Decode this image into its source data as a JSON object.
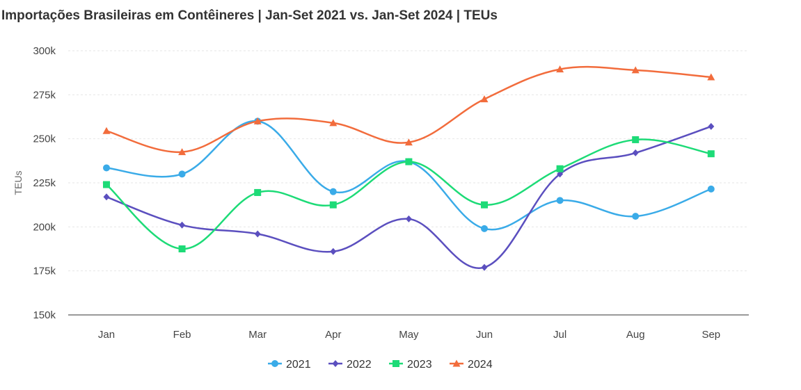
{
  "chart_data": {
    "type": "line",
    "title": "Importações Brasileiras em Contêineres | Jan-Set 2021 vs. Jan-Set 2024 | TEUs",
    "xlabel": "",
    "ylabel": "TEUs",
    "categories": [
      "Jan",
      "Feb",
      "Mar",
      "Apr",
      "May",
      "Jun",
      "Jul",
      "Aug",
      "Sep"
    ],
    "ylim": [
      150000,
      300000
    ],
    "yticks": [
      150000,
      175000,
      200000,
      225000,
      250000,
      275000,
      300000
    ],
    "ytick_labels": [
      "150k",
      "175k",
      "200k",
      "225k",
      "250k",
      "275k",
      "300k"
    ],
    "grid": true,
    "legend_position": "bottom",
    "series": [
      {
        "name": "2021",
        "color": "#3aabe8",
        "marker": "circle",
        "values": [
          233500,
          230000,
          260000,
          220000,
          237000,
          199000,
          215000,
          206000,
          221500
        ]
      },
      {
        "name": "2022",
        "color": "#5b4fbf",
        "marker": "diamond",
        "values": [
          217000,
          201000,
          196000,
          186000,
          204500,
          177000,
          230000,
          242000,
          257000
        ]
      },
      {
        "name": "2023",
        "color": "#1ddb77",
        "marker": "square",
        "values": [
          224000,
          187500,
          219500,
          212500,
          237000,
          212500,
          233000,
          249500,
          241500
        ]
      },
      {
        "name": "2024",
        "color": "#f26c3c",
        "marker": "triangle",
        "values": [
          254500,
          242500,
          260000,
          259000,
          248000,
          272500,
          289500,
          289000,
          285000
        ]
      }
    ]
  }
}
